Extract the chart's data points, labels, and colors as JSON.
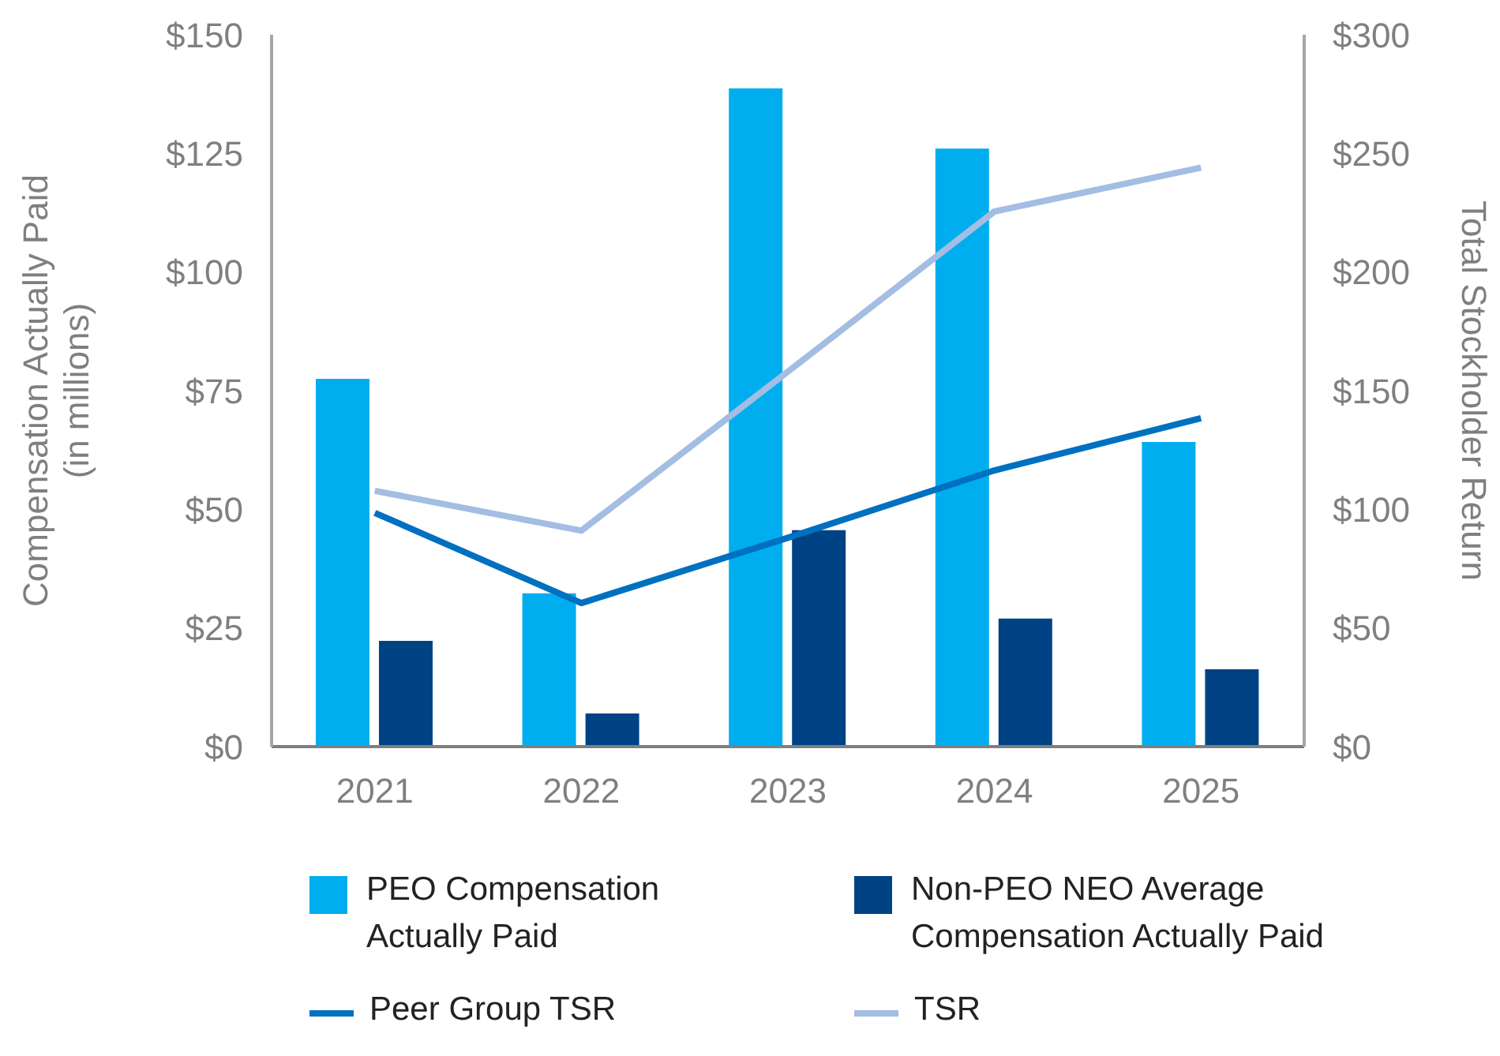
{
  "chart_data": {
    "type": "bar",
    "categories": [
      "2021",
      "2022",
      "2023",
      "2024",
      "2025"
    ],
    "ylabel": "Compensation Actually Paid\n(in millions)",
    "y2label": "Total Stockholder Return",
    "series": [
      {
        "name": "PEO Compensation\nActually Paid",
        "color": "#00aeef",
        "values": [
          77.5,
          32.3,
          138.7,
          126,
          64.2
        ]
      },
      {
        "name": "Non-PEO NEO Average\nCompensation Actually Paid",
        "color": "#004385",
        "values": [
          22.3,
          7,
          45.6,
          27,
          16.3
        ]
      },
      {
        "name": "Peer Group TSR",
        "type": "line",
        "axis": "y2",
        "color": "#0070c0",
        "values": [
          98.5,
          60.5,
          88,
          116.4,
          138.4
        ]
      },
      {
        "name": "TSR",
        "type": "line",
        "axis": "y2",
        "color": "#a3bde3",
        "values": [
          107.8,
          91,
          158,
          225.5,
          244
        ]
      }
    ],
    "ylim": [
      0,
      150
    ],
    "yticks": [
      {
        "value": 0,
        "label": "$0"
      },
      {
        "value": 25,
        "label": "$25"
      },
      {
        "value": 50,
        "label": "$50"
      },
      {
        "value": 75,
        "label": "$75"
      },
      {
        "value": 100,
        "label": "$100"
      },
      {
        "value": 125,
        "label": "$125"
      },
      {
        "value": 150,
        "label": "$150"
      }
    ],
    "y2lim": [
      0,
      300
    ],
    "y2ticks": [
      {
        "value": 0,
        "label": "$0"
      },
      {
        "value": 50,
        "label": "$50"
      },
      {
        "value": 100,
        "label": "$100"
      },
      {
        "value": 150,
        "label": "$150"
      },
      {
        "value": 200,
        "label": "$200"
      },
      {
        "value": 250,
        "label": "$250"
      },
      {
        "value": 300,
        "label": "$300"
      }
    ],
    "grid": false,
    "legend": "bottom"
  }
}
